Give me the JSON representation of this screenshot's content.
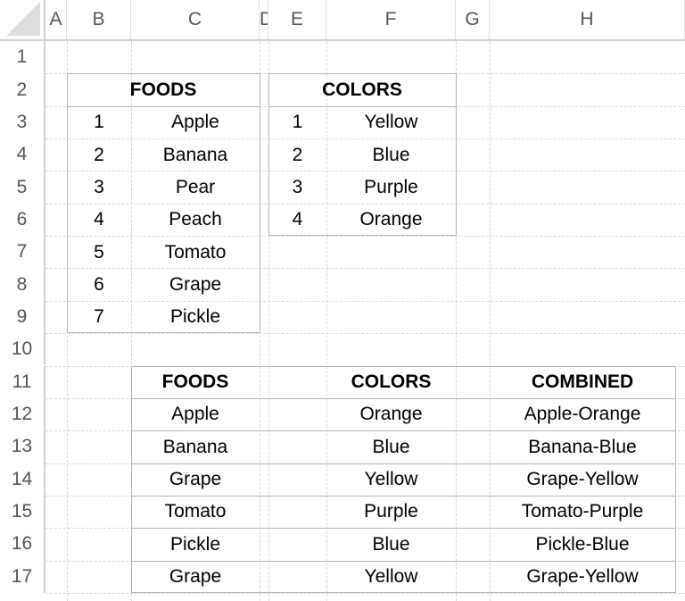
{
  "columns": [
    "A",
    "B",
    "C",
    "D",
    "E",
    "F",
    "G",
    "H"
  ],
  "rows": [
    "1",
    "2",
    "3",
    "4",
    "5",
    "6",
    "7",
    "8",
    "9",
    "10",
    "11",
    "12",
    "13",
    "14",
    "15",
    "16",
    "17"
  ],
  "foods_table": {
    "header": "FOODS",
    "items": [
      [
        "1",
        "Apple"
      ],
      [
        "2",
        "Banana"
      ],
      [
        "3",
        "Pear"
      ],
      [
        "4",
        "Peach"
      ],
      [
        "5",
        "Tomato"
      ],
      [
        "6",
        "Grape"
      ],
      [
        "7",
        "Pickle"
      ]
    ]
  },
  "colors_table": {
    "header": "COLORS",
    "items": [
      [
        "1",
        "Yellow"
      ],
      [
        "2",
        "Blue"
      ],
      [
        "3",
        "Purple"
      ],
      [
        "4",
        "Orange"
      ]
    ]
  },
  "combined_table": {
    "headers": [
      "FOODS",
      "COLORS",
      "COMBINED"
    ],
    "rows": [
      [
        "Apple",
        "Orange",
        "Apple-Orange"
      ],
      [
        "Banana",
        "Blue",
        "Banana-Blue"
      ],
      [
        "Grape",
        "Yellow",
        "Grape-Yellow"
      ],
      [
        "Tomato",
        "Purple",
        "Tomato-Purple"
      ],
      [
        "Pickle",
        "Blue",
        "Pickle-Blue"
      ],
      [
        "Grape",
        "Yellow",
        "Grape-Yellow"
      ]
    ]
  }
}
